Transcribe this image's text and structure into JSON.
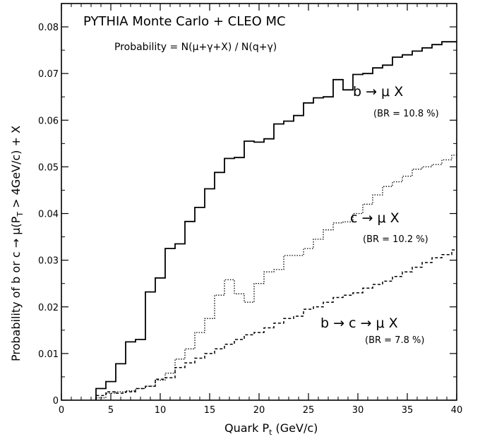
{
  "chart_data": {
    "type": "line",
    "title": "PYTHIA Monte Carlo + CLEO MC",
    "subtitle": "Probability = N(μ+γ+X) / N(q+γ)",
    "xlabel_main": "Quark P",
    "xlabel_sub": "t",
    "xlabel_tail": " (GeV/c)",
    "ylabel_main": "Probability of b or c → μ(P",
    "ylabel_sub": "T",
    "ylabel_tail": " > 4GeV/c) + X",
    "xlim": [
      0,
      40
    ],
    "ylim": [
      0,
      0.085
    ],
    "xticks": [
      0,
      5,
      10,
      15,
      20,
      25,
      30,
      35,
      40
    ],
    "yticks": [
      0,
      0.01,
      0.02,
      0.03,
      0.04,
      0.05,
      0.06,
      0.07,
      0.08
    ],
    "ytick_labels": [
      "0",
      "0.01",
      "0.02",
      "0.03",
      "0.04",
      "0.05",
      "0.06",
      "0.07",
      "0.08"
    ],
    "grid": false,
    "bin_edges": [
      3.5,
      4.5,
      5.5,
      6.5,
      7.5,
      8.5,
      9.5,
      10.5,
      11.5,
      12.5,
      13.5,
      14.5,
      15.5,
      16.5,
      17.5,
      18.5,
      19.5,
      20.5,
      21.5,
      22.5,
      23.5,
      24.5,
      25.5,
      26.5,
      27.5,
      28.5,
      29.5,
      30.5,
      31.5,
      32.5,
      33.5,
      34.5,
      35.5,
      36.5,
      37.5,
      38.5,
      39.5,
      40
    ],
    "series": [
      {
        "id": "b-to-mu",
        "style": "solid",
        "label_text": "b → μ X",
        "br_text": "(BR = 10.8 %)",
        "values": [
          0.0025,
          0.004,
          0.0078,
          0.0125,
          0.013,
          0.0232,
          0.0262,
          0.0325,
          0.0335,
          0.0383,
          0.0413,
          0.0453,
          0.0488,
          0.0518,
          0.052,
          0.0555,
          0.0553,
          0.056,
          0.0592,
          0.0598,
          0.061,
          0.0637,
          0.0648,
          0.065,
          0.0687,
          0.0665,
          0.0698,
          0.07,
          0.0712,
          0.0718,
          0.0735,
          0.074,
          0.0748,
          0.0755,
          0.0762,
          0.0768,
          0.0768
        ]
      },
      {
        "id": "c-to-mu",
        "style": "dotted",
        "label_text": "c → μ X",
        "br_text": "(BR = 10.2 %)",
        "values": [
          0.0005,
          0.0015,
          0.0018,
          0.002,
          0.0025,
          0.003,
          0.0043,
          0.0058,
          0.0088,
          0.011,
          0.0145,
          0.0175,
          0.0225,
          0.0258,
          0.0228,
          0.021,
          0.025,
          0.0275,
          0.028,
          0.031,
          0.031,
          0.0325,
          0.0345,
          0.0365,
          0.038,
          0.0382,
          0.04,
          0.042,
          0.044,
          0.0458,
          0.0468,
          0.048,
          0.0495,
          0.05,
          0.0505,
          0.0515,
          0.0525
        ]
      },
      {
        "id": "b-to-c-to-mu",
        "style": "dashed",
        "label_text": "b → c → μ X",
        "br_text": "(BR = 7.8 %)",
        "values": [
          0.001,
          0.0018,
          0.0015,
          0.0018,
          0.0025,
          0.003,
          0.0045,
          0.0048,
          0.007,
          0.008,
          0.009,
          0.01,
          0.011,
          0.012,
          0.013,
          0.014,
          0.0145,
          0.0155,
          0.0165,
          0.0175,
          0.018,
          0.0195,
          0.02,
          0.021,
          0.022,
          0.0225,
          0.023,
          0.024,
          0.0248,
          0.0255,
          0.0265,
          0.0275,
          0.0285,
          0.0295,
          0.0305,
          0.0312,
          0.0322
        ]
      }
    ]
  }
}
